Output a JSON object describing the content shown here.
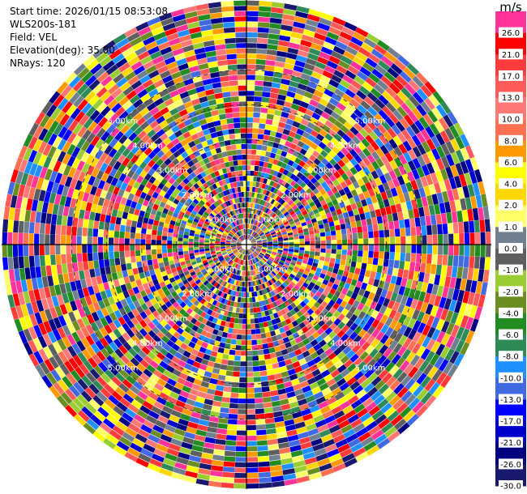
{
  "header": {
    "start_time": "Start time: 2026/01/15 08:53:08",
    "instrument": "WLS200s-181",
    "field": "Field: VEL",
    "elevation": "Elevation(deg): 35.00",
    "nrays": "NRays: 120"
  },
  "chart_data": {
    "type": "heatmap",
    "projection": "polar-ppi",
    "field": "VEL",
    "unit": "m/s",
    "nrays": 120,
    "elevation_deg": 35.0,
    "max_range_km": 7.0,
    "range_rings": [
      {
        "label": "1.00km",
        "km": 1
      },
      {
        "label": "2.00km",
        "km": 2
      },
      {
        "label": "3.00km",
        "km": 3
      },
      {
        "label": "4.00km",
        "km": 4
      },
      {
        "label": "5.00km",
        "km": 5
      }
    ],
    "colorbar": {
      "unit_label": "m/s",
      "levels": [
        {
          "label": "26.0",
          "color": "#ff3399"
        },
        {
          "label": "21.0",
          "color": "#ff0000"
        },
        {
          "label": "17.0",
          "color": "#ff3b3b"
        },
        {
          "label": "13.0",
          "color": "#ff5a5a"
        },
        {
          "label": "10.0",
          "color": "#ff7777"
        },
        {
          "label": "8.0",
          "color": "#ff6f52"
        },
        {
          "label": "6.0",
          "color": "#ff9900"
        },
        {
          "label": "4.0",
          "color": "#ffff00"
        },
        {
          "label": "2.0",
          "color": "#ffd700"
        },
        {
          "label": "1.0",
          "color": "#ffff66"
        },
        {
          "label": "0.0",
          "color": "#708090"
        },
        {
          "label": "-1.0",
          "color": "#5f5f5f"
        },
        {
          "label": "-2.0",
          "color": "#9acd32"
        },
        {
          "label": "-4.0",
          "color": "#6b8e23"
        },
        {
          "label": "-6.0",
          "color": "#228b22"
        },
        {
          "label": "-8.0",
          "color": "#2e8b57"
        },
        {
          "label": "-10.0",
          "color": "#1e90ff"
        },
        {
          "label": "-13.0",
          "color": "#4169e1"
        },
        {
          "label": "-17.0",
          "color": "#0000ff"
        },
        {
          "label": "-21.0",
          "color": "#0000cd"
        },
        {
          "label": "-26.0",
          "color": "#000080"
        },
        {
          "label": "-30.0",
          "color": "#191970"
        }
      ]
    }
  }
}
